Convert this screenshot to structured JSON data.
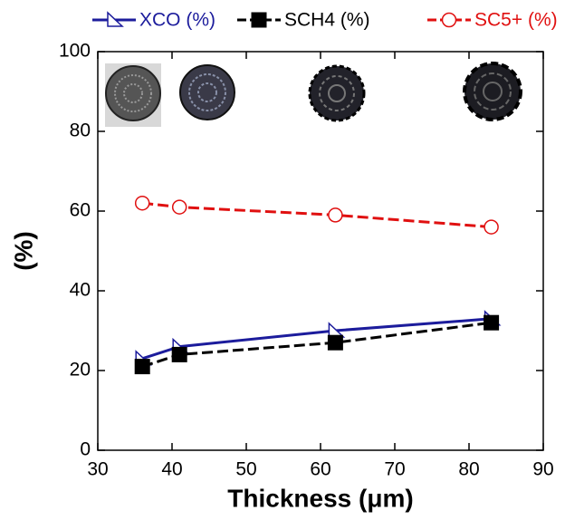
{
  "chart_data": {
    "type": "line",
    "x_label": "Thickness (μm)",
    "y_label": "(%)",
    "x": [
      36,
      41,
      62,
      83
    ],
    "series": [
      {
        "name": "XCO (%)",
        "color": "#1c1c9c",
        "marker": "triangle",
        "linestyle": "solid",
        "values": [
          23,
          26,
          30,
          33
        ]
      },
      {
        "name": "SCH4 (%)",
        "color": "#000000",
        "marker": "square",
        "linestyle": "dashed",
        "values": [
          21,
          24,
          27,
          32
        ]
      },
      {
        "name": "SC5+ (%)",
        "color": "#e01010",
        "marker": "circle",
        "linestyle": "dashed",
        "values": [
          62,
          61,
          59,
          56
        ]
      }
    ],
    "xlim": [
      30,
      90
    ],
    "xticks": [
      30,
      40,
      50,
      60,
      70,
      80,
      90
    ],
    "ylim": [
      0,
      100
    ],
    "yticks": [
      0,
      20,
      40,
      60,
      80,
      100
    ],
    "legend": "top"
  }
}
